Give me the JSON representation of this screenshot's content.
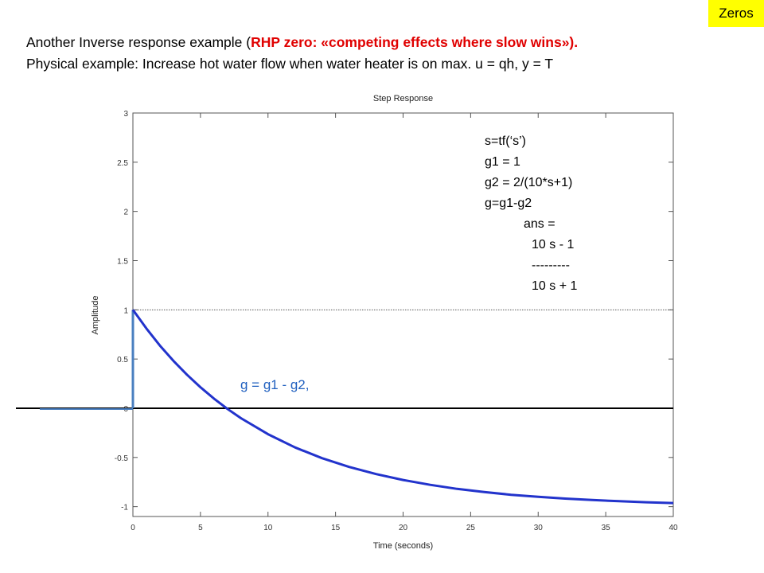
{
  "tag": "Zeros",
  "heading": {
    "line1_prefix": "Another Inverse response example (",
    "line1_red": "RHP zero: «competing effects where slow wins»).",
    "line2": "Physical example: Increase hot water flow when water heater is on max. u = qh, y = T"
  },
  "annotation_code": [
    "s=tf(‘s’)",
    "g1 = 1",
    "g2 = 2/(10*s+1)",
    "g=g1-g2",
    "ans =",
    "10 s - 1",
    "---------",
    "10 s + 1"
  ],
  "annotation_equation": "g = g1 - g2,",
  "colors": {
    "response_line": "#2233cc",
    "step_jump_line": "#4a7fc0",
    "zero_line": "#000000",
    "equation_text": "#1f5fbf",
    "tag_background": "#ffff00",
    "highlight_text": "#e00000"
  },
  "chart_data": {
    "type": "line",
    "title": "Step Response",
    "xlabel": "Time (seconds)",
    "ylabel": "Amplitude",
    "xlim": [
      0,
      40
    ],
    "ylim": [
      -1.1,
      3
    ],
    "xticks": [
      0,
      5,
      10,
      15,
      20,
      25,
      30,
      35,
      40
    ],
    "yticks": [
      -1,
      -0.5,
      0,
      0.5,
      1,
      1.5,
      2,
      2.5,
      3
    ],
    "ytick_labels": [
      "-1",
      "-0.5",
      "0",
      "0.5",
      "1",
      "1.5",
      "2",
      "2.5",
      "3"
    ],
    "grid": false,
    "dotted_reference_lines": [
      1,
      3
    ],
    "series": [
      {
        "x": [
          0,
          1,
          2,
          3,
          4,
          5,
          6,
          7,
          8,
          10,
          12,
          14,
          16,
          18,
          20,
          22,
          24,
          26,
          28,
          30,
          32,
          34,
          36,
          38,
          40
        ],
        "y": [
          1,
          0.81,
          0.637,
          0.482,
          0.341,
          0.213,
          0.098,
          -0.007,
          -0.101,
          -0.264,
          -0.398,
          -0.507,
          -0.596,
          -0.669,
          -0.729,
          -0.778,
          -0.819,
          -0.852,
          -0.879,
          -0.9,
          -0.918,
          -0.933,
          -0.945,
          -0.955,
          -0.963
        ]
      }
    ],
    "initial_jump": {
      "x": 0,
      "from": 0,
      "to": 1
    },
    "zero_baseline_extended": true
  }
}
